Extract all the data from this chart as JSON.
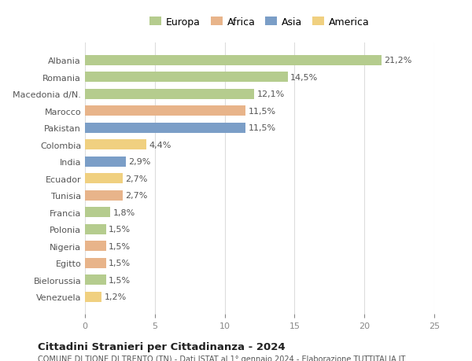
{
  "countries": [
    "Albania",
    "Romania",
    "Macedonia d/N.",
    "Marocco",
    "Pakistan",
    "Colombia",
    "India",
    "Ecuador",
    "Tunisia",
    "Francia",
    "Polonia",
    "Nigeria",
    "Egitto",
    "Bielorussia",
    "Venezuela"
  ],
  "values": [
    21.2,
    14.5,
    12.1,
    11.5,
    11.5,
    4.4,
    2.9,
    2.7,
    2.7,
    1.8,
    1.5,
    1.5,
    1.5,
    1.5,
    1.2
  ],
  "labels": [
    "21,2%",
    "14,5%",
    "12,1%",
    "11,5%",
    "11,5%",
    "4,4%",
    "2,9%",
    "2,7%",
    "2,7%",
    "1,8%",
    "1,5%",
    "1,5%",
    "1,5%",
    "1,5%",
    "1,2%"
  ],
  "continents": [
    "Europa",
    "Europa",
    "Europa",
    "Africa",
    "Asia",
    "America",
    "Asia",
    "America",
    "Africa",
    "Europa",
    "Europa",
    "Africa",
    "Africa",
    "Europa",
    "America"
  ],
  "continent_colors": {
    "Europa": "#b5cc8e",
    "Africa": "#e8b48a",
    "Asia": "#7b9ec7",
    "America": "#f0d080"
  },
  "legend_order": [
    "Europa",
    "Africa",
    "Asia",
    "America"
  ],
  "title": "Cittadini Stranieri per Cittadinanza - 2024",
  "subtitle": "COMUNE DI TIONE DI TRENTO (TN) - Dati ISTAT al 1° gennaio 2024 - Elaborazione TUTTITALIA.IT",
  "xlim": [
    0,
    25
  ],
  "xticks": [
    0,
    5,
    10,
    15,
    20,
    25
  ],
  "background_color": "#ffffff",
  "bar_height": 0.6,
  "grid_color": "#dddddd"
}
